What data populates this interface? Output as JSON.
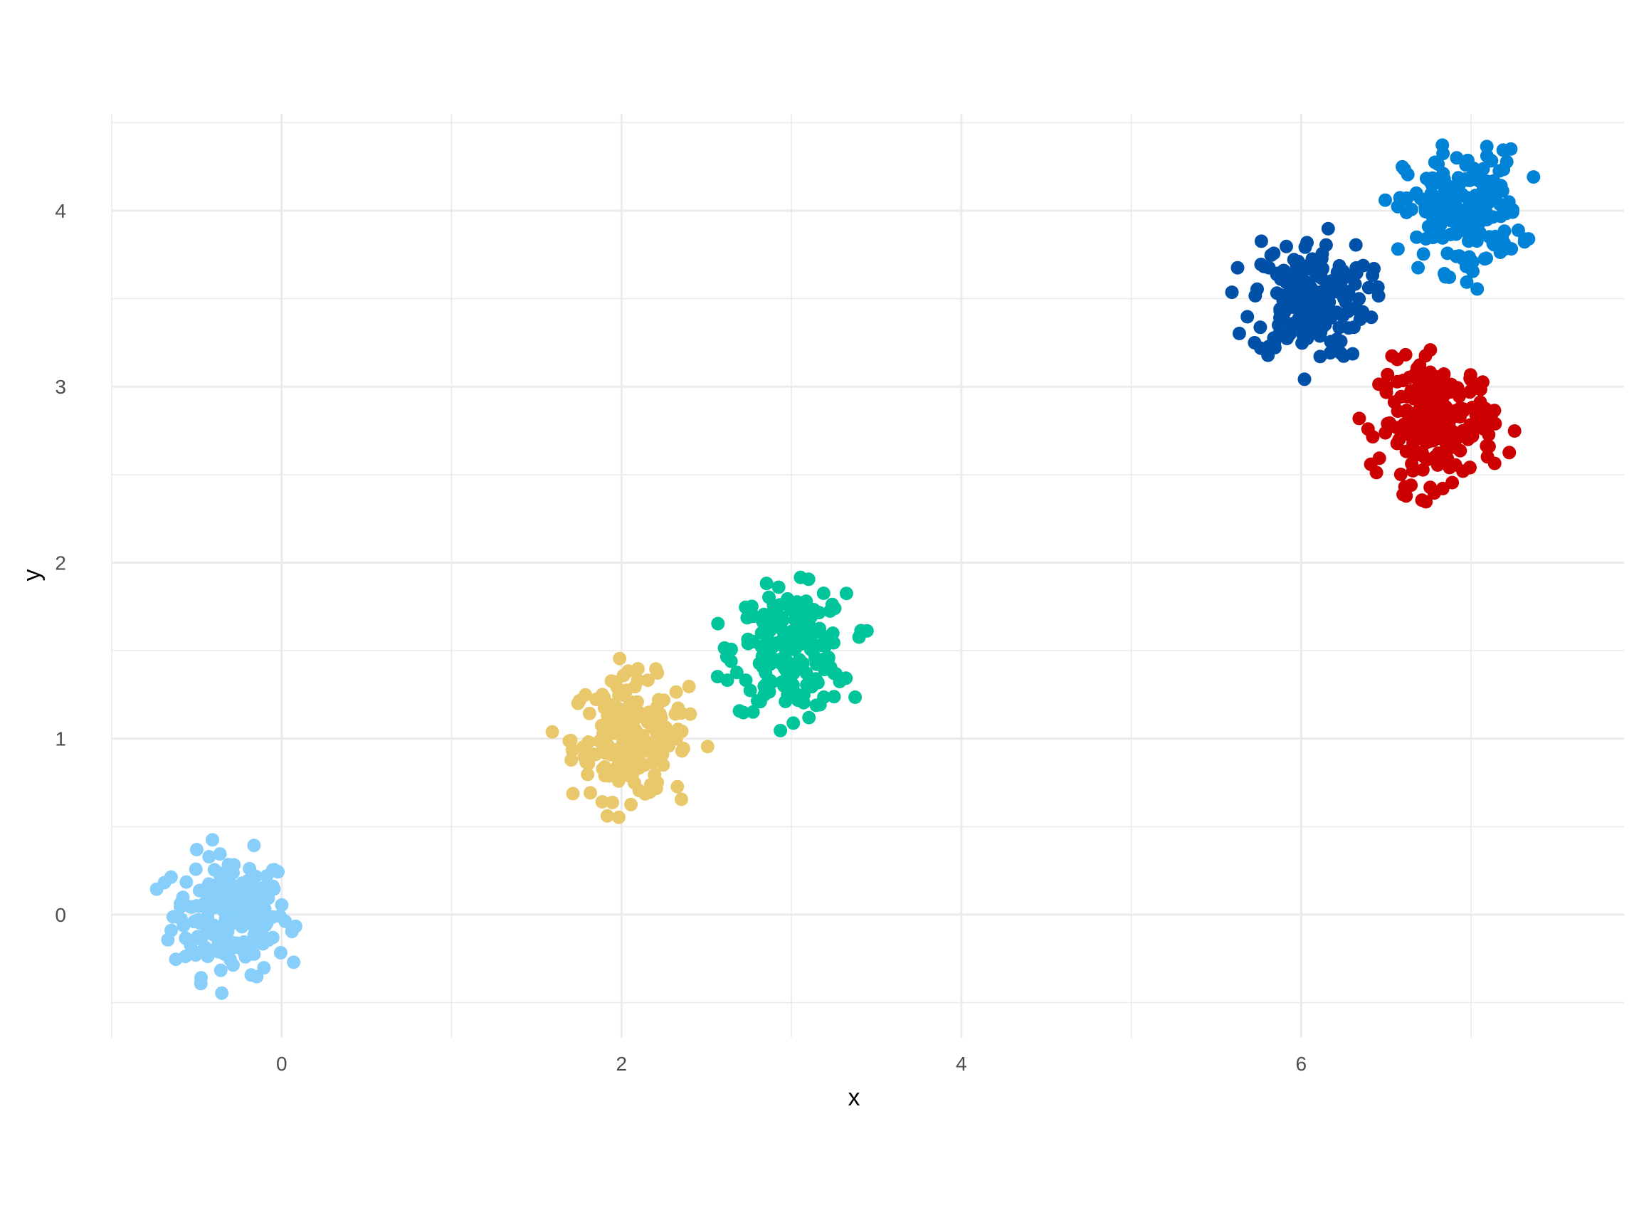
{
  "chart_data": {
    "type": "scatter",
    "title": "",
    "xlabel": "x",
    "ylabel": "y",
    "xlim": [
      -1,
      7.9
    ],
    "ylim": [
      -0.7,
      4.55
    ],
    "x_ticks": [
      0,
      2,
      4,
      6
    ],
    "x_tick_labels": [
      "0",
      "2",
      "4",
      "6"
    ],
    "y_ticks": [
      0,
      1,
      2,
      3,
      4
    ],
    "y_tick_labels": [
      "0",
      "1",
      "2",
      "3",
      "4"
    ],
    "grid": true,
    "legend": "none",
    "points_per_cluster": 200,
    "clusters": [
      {
        "center": [
          -0.3,
          0.0
        ],
        "spread": 0.17,
        "color": "#87CEFA"
      },
      {
        "center": [
          2.05,
          1.0
        ],
        "spread": 0.17,
        "color": "#E8C86A"
      },
      {
        "center": [
          3.0,
          1.5
        ],
        "spread": 0.17,
        "color": "#00C49A"
      },
      {
        "center": [
          6.05,
          3.5
        ],
        "spread": 0.17,
        "color": "#0050A8"
      },
      {
        "center": [
          6.95,
          4.0
        ],
        "spread": 0.17,
        "color": "#0082D6"
      },
      {
        "center": [
          6.8,
          2.8
        ],
        "spread": 0.17,
        "color": "#CC0000"
      }
    ]
  }
}
